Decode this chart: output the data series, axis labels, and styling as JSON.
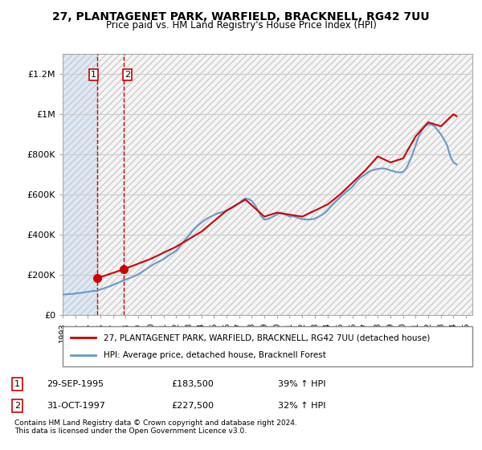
{
  "title": "27, PLANTAGENET PARK, WARFIELD, BRACKNELL, RG42 7UU",
  "subtitle": "Price paid vs. HM Land Registry's House Price Index (HPI)",
  "footer": "Contains HM Land Registry data © Crown copyright and database right 2024.\nThis data is licensed under the Open Government Licence v3.0.",
  "legend_line1": "27, PLANTAGENET PARK, WARFIELD, BRACKNELL, RG42 7UU (detached house)",
  "legend_line2": "HPI: Average price, detached house, Bracknell Forest",
  "sale1_label": "1",
  "sale1_date": "29-SEP-1995",
  "sale1_price": "£183,500",
  "sale1_hpi": "39% ↑ HPI",
  "sale2_label": "2",
  "sale2_date": "31-OCT-1997",
  "sale2_price": "£227,500",
  "sale2_hpi": "32% ↑ HPI",
  "sale1_x": 1995.75,
  "sale1_y": 183500,
  "sale2_x": 1997.83,
  "sale2_y": 227500,
  "line_color": "#cc0000",
  "hpi_color": "#6699cc",
  "background_hatch": "#e8e8e8",
  "shading_color": "#ddeeff",
  "ylim": [
    0,
    1300000
  ],
  "xlim": [
    1993,
    2025.5
  ],
  "yticks": [
    0,
    200000,
    400000,
    600000,
    800000,
    1000000,
    1200000
  ],
  "ytick_labels": [
    "£0",
    "£200K",
    "£400K",
    "£600K",
    "£800K",
    "£1M",
    "£1.2M"
  ],
  "xticks": [
    1993,
    1994,
    1995,
    1996,
    1997,
    1998,
    1999,
    2000,
    2001,
    2002,
    2003,
    2004,
    2005,
    2006,
    2007,
    2008,
    2009,
    2010,
    2011,
    2012,
    2013,
    2014,
    2015,
    2016,
    2017,
    2018,
    2019,
    2020,
    2021,
    2022,
    2023,
    2024,
    2025
  ],
  "sale1_vline_x": 1995.75,
  "sale2_vline_x": 1997.83,
  "hpi_data_x": [
    1993.0,
    1993.25,
    1993.5,
    1993.75,
    1994.0,
    1994.25,
    1994.5,
    1994.75,
    1995.0,
    1995.25,
    1995.5,
    1995.75,
    1996.0,
    1996.25,
    1996.5,
    1996.75,
    1997.0,
    1997.25,
    1997.5,
    1997.75,
    1998.0,
    1998.25,
    1998.5,
    1998.75,
    1999.0,
    1999.25,
    1999.5,
    1999.75,
    2000.0,
    2000.25,
    2000.5,
    2000.75,
    2001.0,
    2001.25,
    2001.5,
    2001.75,
    2002.0,
    2002.25,
    2002.5,
    2002.75,
    2003.0,
    2003.25,
    2003.5,
    2003.75,
    2004.0,
    2004.25,
    2004.5,
    2004.75,
    2005.0,
    2005.25,
    2005.5,
    2005.75,
    2006.0,
    2006.25,
    2006.5,
    2006.75,
    2007.0,
    2007.25,
    2007.5,
    2007.75,
    2008.0,
    2008.25,
    2008.5,
    2008.75,
    2009.0,
    2009.25,
    2009.5,
    2009.75,
    2010.0,
    2010.25,
    2010.5,
    2010.75,
    2011.0,
    2011.25,
    2011.5,
    2011.75,
    2012.0,
    2012.25,
    2012.5,
    2012.75,
    2013.0,
    2013.25,
    2013.5,
    2013.75,
    2014.0,
    2014.25,
    2014.5,
    2014.75,
    2015.0,
    2015.25,
    2015.5,
    2015.75,
    2016.0,
    2016.25,
    2016.5,
    2016.75,
    2017.0,
    2017.25,
    2017.5,
    2017.75,
    2018.0,
    2018.25,
    2018.5,
    2018.75,
    2019.0,
    2019.25,
    2019.5,
    2019.75,
    2020.0,
    2020.25,
    2020.5,
    2020.75,
    2021.0,
    2021.25,
    2021.5,
    2021.75,
    2022.0,
    2022.25,
    2022.5,
    2022.75,
    2023.0,
    2023.25,
    2023.5,
    2023.75,
    2024.0,
    2024.25
  ],
  "hpi_data_y": [
    102000,
    103000,
    104000,
    105000,
    107000,
    109000,
    111000,
    113000,
    116000,
    118000,
    120000,
    122000,
    127000,
    132000,
    138000,
    143000,
    150000,
    157000,
    163000,
    170000,
    176000,
    183000,
    189000,
    195000,
    203000,
    213000,
    223000,
    234000,
    244000,
    254000,
    262000,
    270000,
    278000,
    289000,
    300000,
    310000,
    320000,
    338000,
    358000,
    378000,
    395000,
    415000,
    432000,
    447000,
    460000,
    472000,
    482000,
    490000,
    498000,
    505000,
    510000,
    514000,
    519000,
    528000,
    537000,
    548000,
    558000,
    572000,
    580000,
    578000,
    568000,
    548000,
    520000,
    492000,
    475000,
    478000,
    484000,
    492000,
    500000,
    510000,
    505000,
    498000,
    490000,
    492000,
    488000,
    482000,
    478000,
    476000,
    475000,
    477000,
    480000,
    488000,
    496000,
    506000,
    520000,
    538000,
    555000,
    570000,
    585000,
    600000,
    614000,
    626000,
    640000,
    660000,
    678000,
    690000,
    700000,
    712000,
    720000,
    724000,
    728000,
    730000,
    730000,
    726000,
    720000,
    716000,
    712000,
    710000,
    712000,
    730000,
    762000,
    800000,
    845000,
    890000,
    920000,
    940000,
    950000,
    948000,
    940000,
    920000,
    900000,
    875000,
    845000,
    790000,
    760000,
    750000
  ],
  "price_line_x": [
    1995.75,
    1997.83,
    2000.0,
    2002.0,
    2004.0,
    2006.0,
    2007.5,
    2009.0,
    2010.0,
    2012.0,
    2014.0,
    2015.0,
    2016.0,
    2017.0,
    2018.0,
    2019.0,
    2020.0,
    2021.0,
    2022.0,
    2023.0,
    2024.0,
    2024.25
  ],
  "price_line_y": [
    183500,
    227500,
    280000,
    340000,
    415000,
    520000,
    575000,
    490000,
    510000,
    490000,
    550000,
    600000,
    660000,
    720000,
    790000,
    760000,
    780000,
    890000,
    960000,
    940000,
    1000000,
    990000
  ]
}
